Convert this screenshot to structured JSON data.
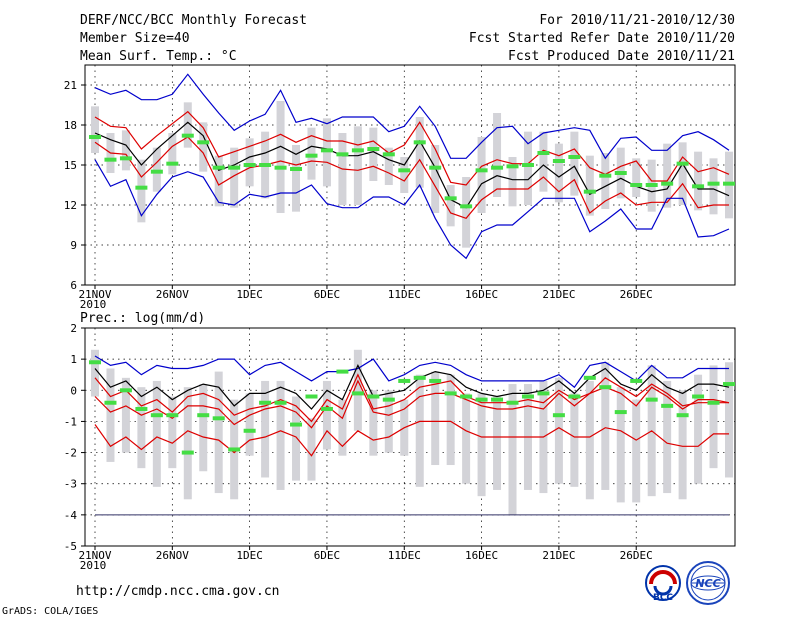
{
  "header": {
    "title": "DERF/NCC/BCC Monthly Forecast",
    "member_size": "Member Size=40",
    "variable": "Mean Surf. Temp.: °C",
    "period": "For 2010/11/21-2010/12/30",
    "started": "Fcst Started Refer Date 2010/11/20",
    "produced": "Fcst Produced Date 2010/11/21"
  },
  "footer": {
    "url": "http://cmdp.ncc.cma.gov.cn",
    "credit": "GrADS: COLA/IGES",
    "logo_left_text": "BCC",
    "logo_right_text": "NCC"
  },
  "colors": {
    "envelope": "#0000cc",
    "spread": "#dd0000",
    "mean": "#000000",
    "box": "#d3d3d8",
    "observed": "#44dd44",
    "grid": "#000000"
  },
  "chart_data": [
    {
      "type": "line",
      "name": "temperature-panel",
      "title": "Mean Surf. Temp.: °C",
      "ylabel": "°C",
      "ylim": [
        6,
        22.5
      ],
      "yticks": [
        6,
        9,
        12,
        15,
        18,
        21
      ],
      "xtick_labels": [
        "21NOV",
        "26NOV",
        "1DEC",
        "6DEC",
        "11DEC",
        "16DEC",
        "21DEC",
        "26DEC"
      ],
      "xtick_sub": "2010",
      "xtick_days": [
        0,
        5,
        10,
        15,
        20,
        25,
        30,
        35
      ],
      "days": 40,
      "series": [
        {
          "name": "max",
          "color": "#0000cc",
          "values": [
            20.8,
            20.3,
            20.6,
            19.9,
            19.9,
            20.3,
            21.8,
            20.3,
            18.9,
            17.6,
            18.3,
            18.8,
            20.6,
            18.2,
            18.5,
            18.1,
            18.6,
            18.6,
            18.6,
            17.5,
            17.9,
            19.4,
            17.9,
            15.5,
            15.5,
            16.7,
            17.8,
            17.9,
            16.6,
            17.4,
            17.6,
            17.8,
            17.6,
            15.5,
            17.0,
            17.1,
            16.1,
            16.1,
            17.2,
            17.5,
            16.9,
            16.1
          ]
        },
        {
          "name": "upper",
          "color": "#dd0000",
          "values": [
            18.6,
            17.9,
            17.8,
            16.2,
            17.2,
            18.1,
            19.0,
            17.8,
            15.6,
            16.0,
            16.4,
            16.8,
            17.3,
            16.7,
            17.2,
            16.8,
            16.8,
            16.5,
            16.8,
            15.9,
            16.5,
            18.2,
            16.2,
            13.7,
            13.5,
            14.9,
            15.4,
            15.1,
            15.1,
            16.1,
            15.7,
            16.2,
            14.8,
            14.3,
            14.9,
            15.3,
            13.8,
            13.8,
            15.6,
            14.5,
            14.8,
            14.3
          ]
        },
        {
          "name": "mean",
          "color": "#000000",
          "values": [
            17.4,
            16.9,
            16.5,
            15.0,
            16.2,
            17.2,
            18.2,
            17.2,
            14.6,
            15.0,
            15.6,
            15.9,
            16.4,
            15.8,
            16.4,
            16.2,
            15.7,
            15.7,
            16.0,
            15.4,
            15.0,
            16.8,
            14.8,
            12.4,
            11.8,
            13.6,
            14.2,
            13.9,
            13.9,
            15.0,
            14.1,
            14.9,
            12.8,
            13.4,
            14.0,
            13.4,
            13.0,
            13.2,
            15.1,
            13.2,
            13.2,
            12.7
          ]
        },
        {
          "name": "lower",
          "color": "#dd0000",
          "values": [
            16.7,
            15.9,
            15.8,
            14.1,
            15.2,
            16.4,
            17.1,
            15.9,
            13.5,
            14.2,
            14.8,
            15.0,
            15.3,
            15.0,
            15.3,
            15.2,
            14.7,
            14.6,
            14.9,
            14.4,
            13.8,
            15.4,
            13.4,
            11.4,
            11.0,
            12.4,
            13.2,
            13.2,
            13.2,
            14.1,
            13.0,
            13.9,
            11.4,
            12.3,
            12.9,
            12.0,
            12.2,
            12.2,
            13.6,
            11.8,
            12.0,
            12.0
          ]
        },
        {
          "name": "min",
          "color": "#0000cc",
          "values": [
            15.4,
            13.4,
            13.9,
            11.2,
            12.8,
            14.1,
            14.5,
            14.1,
            12.2,
            12.0,
            12.8,
            12.6,
            12.9,
            12.9,
            13.5,
            12.1,
            11.8,
            11.8,
            12.6,
            12.6,
            12.0,
            13.5,
            11.0,
            9.0,
            8.0,
            10.0,
            10.5,
            10.5,
            11.5,
            12.5,
            12.5,
            12.5,
            10.0,
            10.8,
            11.7,
            10.2,
            10.2,
            12.5,
            12.5,
            9.6,
            9.7,
            10.2
          ]
        }
      ],
      "boxes": [
        {
          "low": 15.9,
          "high": 19.4
        },
        {
          "low": 14.4,
          "high": 17.4
        },
        {
          "low": 14.6,
          "high": 17.6
        },
        {
          "low": 10.7,
          "high": 15.4
        },
        {
          "low": 13.0,
          "high": 16.3
        },
        {
          "low": 14.3,
          "high": 17.4
        },
        {
          "low": 16.3,
          "high": 19.7
        },
        {
          "low": 14.5,
          "high": 18.2
        },
        {
          "low": 11.9,
          "high": 15.7
        },
        {
          "low": 11.8,
          "high": 16.3
        },
        {
          "low": 13.4,
          "high": 17.0
        },
        {
          "low": 12.5,
          "high": 17.5
        },
        {
          "low": 11.4,
          "high": 19.8
        },
        {
          "low": 11.5,
          "high": 16.5
        },
        {
          "low": 13.9,
          "high": 17.8
        },
        {
          "low": 13.4,
          "high": 18.5
        },
        {
          "low": 12.0,
          "high": 17.4
        },
        {
          "low": 12.0,
          "high": 17.9
        },
        {
          "low": 13.8,
          "high": 17.8
        },
        {
          "low": 13.5,
          "high": 16.3
        },
        {
          "low": 12.9,
          "high": 15.6
        },
        {
          "low": 13.3,
          "high": 18.6
        },
        {
          "low": 11.4,
          "high": 16.5
        },
        {
          "low": 10.4,
          "high": 13.5
        },
        {
          "low": 8.8,
          "high": 14.1
        },
        {
          "low": 11.4,
          "high": 17.1
        },
        {
          "low": 12.6,
          "high": 18.9
        },
        {
          "low": 11.9,
          "high": 15.6
        },
        {
          "low": 12.0,
          "high": 17.5
        },
        {
          "low": 13.0,
          "high": 17.5
        },
        {
          "low": 12.2,
          "high": 16.6
        },
        {
          "low": 12.7,
          "high": 17.5
        },
        {
          "low": 11.2,
          "high": 15.7
        },
        {
          "low": 11.7,
          "high": 15.9
        },
        {
          "low": 12.5,
          "high": 16.3
        },
        {
          "low": 12.6,
          "high": 15.5
        },
        {
          "low": 11.5,
          "high": 15.4
        },
        {
          "low": 11.8,
          "high": 16.6
        },
        {
          "low": 12.0,
          "high": 16.7
        },
        {
          "low": 11.6,
          "high": 16.0
        },
        {
          "low": 11.3,
          "high": 15.5
        },
        {
          "low": 11.0,
          "high": 16.0
        }
      ],
      "observed": [
        17.1,
        15.4,
        15.5,
        13.3,
        14.5,
        15.1,
        17.2,
        16.7,
        14.8,
        14.8,
        15.0,
        15.0,
        14.8,
        14.7,
        15.7,
        16.1,
        15.8,
        16.1,
        16.2,
        15.8,
        14.6,
        16.7,
        14.8,
        12.5,
        11.9,
        14.6,
        14.8,
        14.9,
        15.0,
        15.9,
        15.3,
        15.6,
        13.0,
        14.2,
        14.4,
        13.5,
        13.5,
        13.6,
        15.1,
        13.4,
        13.6,
        13.6
      ]
    },
    {
      "type": "line",
      "name": "precipitation-panel",
      "title": "Prec.: log(mm/d)",
      "ylabel": "log(mm/d)",
      "ylim": [
        -5,
        2
      ],
      "yticks": [
        -5,
        -4,
        -3,
        -2,
        -1,
        0,
        1,
        2
      ],
      "xtick_labels": [
        "21NOV",
        "26NOV",
        "1DEC",
        "6DEC",
        "11DEC",
        "16DEC",
        "21DEC",
        "26DEC"
      ],
      "xtick_sub": "2010",
      "xtick_days": [
        0,
        5,
        10,
        15,
        20,
        25,
        30,
        35
      ],
      "days": 40,
      "baseline": -4,
      "series": [
        {
          "name": "max",
          "color": "#0000cc",
          "values": [
            1.1,
            0.8,
            0.9,
            0.5,
            0.8,
            0.7,
            0.7,
            0.8,
            1.0,
            1.0,
            0.5,
            0.8,
            0.9,
            0.6,
            0.3,
            0.6,
            0.6,
            0.7,
            1.0,
            0.3,
            0.5,
            0.8,
            0.9,
            0.8,
            0.5,
            0.3,
            0.3,
            0.3,
            0.3,
            0.3,
            0.5,
            0.1,
            0.8,
            0.9,
            0.6,
            0.3,
            0.8,
            0.4,
            0.4,
            0.7,
            0.7,
            0.7
          ]
        },
        {
          "name": "upper",
          "color": "#dd0000",
          "values": [
            0.4,
            -0.2,
            0.0,
            -0.5,
            -0.3,
            -0.7,
            -0.2,
            -0.1,
            -0.3,
            -0.8,
            -0.6,
            -0.5,
            -0.3,
            -0.5,
            -1.0,
            -0.3,
            -0.6,
            0.5,
            -0.6,
            -0.5,
            -0.3,
            0.1,
            0.2,
            0.3,
            -0.2,
            -0.4,
            -0.4,
            -0.4,
            -0.3,
            -0.4,
            0.0,
            -0.3,
            -0.1,
            0.4,
            0.1,
            -0.2,
            0.2,
            -0.1,
            -0.5,
            -0.4,
            -0.4,
            -0.4
          ]
        },
        {
          "name": "mean",
          "color": "#000000",
          "values": [
            0.7,
            0.1,
            0.3,
            -0.2,
            0.1,
            -0.3,
            0.0,
            0.2,
            0.1,
            -0.5,
            -0.1,
            -0.1,
            0.1,
            -0.1,
            -0.6,
            0.0,
            -0.3,
            0.8,
            -0.2,
            -0.1,
            0.0,
            0.4,
            0.6,
            0.5,
            0.1,
            -0.1,
            -0.2,
            -0.1,
            -0.1,
            0.0,
            0.3,
            -0.1,
            0.4,
            0.7,
            0.2,
            0.0,
            0.5,
            0.1,
            -0.1,
            0.2,
            0.2,
            0.1
          ]
        },
        {
          "name": "lower",
          "color": "#dd0000",
          "values": [
            -0.2,
            -0.7,
            -0.5,
            -0.8,
            -0.6,
            -0.9,
            -0.5,
            -0.5,
            -0.6,
            -1.1,
            -0.8,
            -0.6,
            -0.5,
            -0.7,
            -1.2,
            -0.5,
            -0.9,
            0.3,
            -0.7,
            -0.8,
            -0.6,
            -0.2,
            -0.1,
            -0.1,
            -0.3,
            -0.5,
            -0.6,
            -0.6,
            -0.5,
            -0.6,
            -0.1,
            -0.5,
            -0.1,
            0.1,
            -0.1,
            -0.5,
            0.1,
            -0.2,
            -0.6,
            -0.3,
            -0.3,
            -0.4
          ]
        },
        {
          "name": "min",
          "color": "#dd0000",
          "values": [
            -1.1,
            -1.8,
            -1.5,
            -1.9,
            -1.5,
            -1.7,
            -1.3,
            -1.5,
            -1.6,
            -2.0,
            -1.6,
            -1.5,
            -1.3,
            -1.5,
            -2.1,
            -1.3,
            -1.8,
            -1.3,
            -1.6,
            -1.5,
            -1.2,
            -1.0,
            -1.0,
            -1.0,
            -1.3,
            -1.5,
            -1.5,
            -1.5,
            -1.5,
            -1.5,
            -1.2,
            -1.5,
            -1.5,
            -1.2,
            -1.3,
            -1.6,
            -1.3,
            -1.7,
            -1.8,
            -1.8,
            -1.4,
            -1.4
          ]
        }
      ],
      "boxes": [
        {
          "low": -0.2,
          "high": 1.3
        },
        {
          "low": -2.3,
          "high": 0.7
        },
        {
          "low": -2.0,
          "high": 0.4
        },
        {
          "low": -2.5,
          "high": 0.1
        },
        {
          "low": -3.1,
          "high": 0.3
        },
        {
          "low": -2.5,
          "high": -0.2
        },
        {
          "low": -3.5,
          "high": 0.1
        },
        {
          "low": -2.6,
          "high": 0.2
        },
        {
          "low": -3.3,
          "high": 0.6
        },
        {
          "low": -3.5,
          "high": -0.3
        },
        {
          "low": -2.1,
          "high": -0.1
        },
        {
          "low": -2.8,
          "high": 0.3
        },
        {
          "low": -3.2,
          "high": 0.3
        },
        {
          "low": -2.9,
          "high": -0.2
        },
        {
          "low": -2.9,
          "high": -0.9
        },
        {
          "low": -1.9,
          "high": 0.3
        },
        {
          "low": -2.1,
          "high": -0.3
        },
        {
          "low": -1.3,
          "high": 1.3
        },
        {
          "low": -2.1,
          "high": 0.0
        },
        {
          "low": -2.0,
          "high": 0.0
        },
        {
          "low": -2.1,
          "high": -0.3
        },
        {
          "low": -3.1,
          "high": 0.5
        },
        {
          "low": -2.4,
          "high": 0.6
        },
        {
          "low": -2.4,
          "high": 0.5
        },
        {
          "low": -3.0,
          "high": -0.1
        },
        {
          "low": -3.4,
          "high": -0.1
        },
        {
          "low": -3.2,
          "high": -0.2
        },
        {
          "low": -4.0,
          "high": 0.2
        },
        {
          "low": -3.2,
          "high": 0.2
        },
        {
          "low": -3.3,
          "high": 0.3
        },
        {
          "low": -3.0,
          "high": 0.4
        },
        {
          "low": -3.1,
          "high": -0.1
        },
        {
          "low": -3.5,
          "high": 0.3
        },
        {
          "low": -3.2,
          "high": 0.9
        },
        {
          "low": -3.6,
          "high": 0.1
        },
        {
          "low": -3.6,
          "high": -0.3
        },
        {
          "low": -3.4,
          "high": 0.8
        },
        {
          "low": -3.3,
          "high": 0.3
        },
        {
          "low": -3.5,
          "high": 0.0
        },
        {
          "low": -3.0,
          "high": 0.5
        },
        {
          "low": -2.5,
          "high": 0.8
        },
        {
          "low": -2.8,
          "high": 0.9
        }
      ],
      "observed": [
        0.9,
        -0.4,
        0.0,
        -0.6,
        -0.8,
        -0.8,
        -2.0,
        -0.8,
        -0.9,
        -1.9,
        -1.3,
        -0.4,
        -0.4,
        -1.1,
        -0.2,
        -0.6,
        0.6,
        -0.1,
        -0.2,
        -0.3,
        0.3,
        0.4,
        0.3,
        -0.1,
        -0.2,
        -0.3,
        -0.3,
        -0.4,
        -0.2,
        -0.1,
        -0.8,
        -0.2,
        0.4,
        0.1,
        -0.7,
        0.3,
        -0.3,
        -0.5,
        -0.8,
        -0.2,
        -0.4,
        0.2
      ]
    }
  ]
}
